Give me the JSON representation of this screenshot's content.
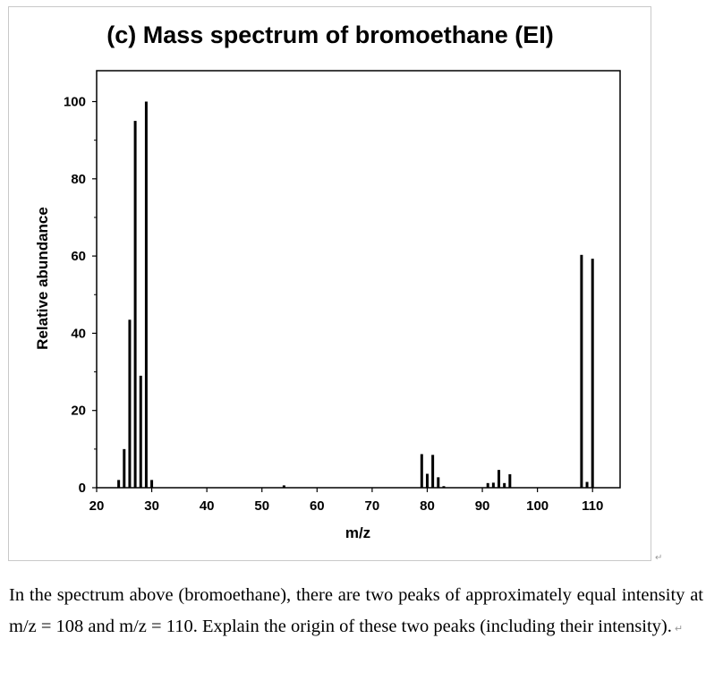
{
  "chart_data": {
    "type": "bar",
    "title": "(c) Mass spectrum of bromoethane (EI)",
    "xlabel": "m/z",
    "ylabel": "Relative abundance",
    "xlim": [
      20,
      115
    ],
    "ylim": [
      0,
      108
    ],
    "xticks": [
      20,
      30,
      40,
      50,
      60,
      70,
      80,
      90,
      100,
      110
    ],
    "yticks": [
      0,
      20,
      40,
      60,
      80,
      100
    ],
    "grid": false,
    "peaks": [
      {
        "mz": 24,
        "value": 2
      },
      {
        "mz": 25,
        "value": 10
      },
      {
        "mz": 26,
        "value": 43.5
      },
      {
        "mz": 27,
        "value": 95
      },
      {
        "mz": 28,
        "value": 29
      },
      {
        "mz": 29,
        "value": 100
      },
      {
        "mz": 30,
        "value": 2
      },
      {
        "mz": 54,
        "value": 0.6
      },
      {
        "mz": 79,
        "value": 8.7
      },
      {
        "mz": 80,
        "value": 3.6
      },
      {
        "mz": 81,
        "value": 8.5
      },
      {
        "mz": 82,
        "value": 2.7
      },
      {
        "mz": 83,
        "value": 0.4
      },
      {
        "mz": 91,
        "value": 1.2
      },
      {
        "mz": 92,
        "value": 1.3
      },
      {
        "mz": 93,
        "value": 4.6
      },
      {
        "mz": 94,
        "value": 1.2
      },
      {
        "mz": 95,
        "value": 3.5
      },
      {
        "mz": 108,
        "value": 60.3
      },
      {
        "mz": 109,
        "value": 1.5
      },
      {
        "mz": 110,
        "value": 59.3
      }
    ]
  },
  "question": {
    "text": "In the spectrum above (bromoethane), there are two peaks of approximately equal intensity at m/z = 108 and m/z = 110. Explain the origin of these two peaks (including their intensity).",
    "return_mark": "↵"
  }
}
